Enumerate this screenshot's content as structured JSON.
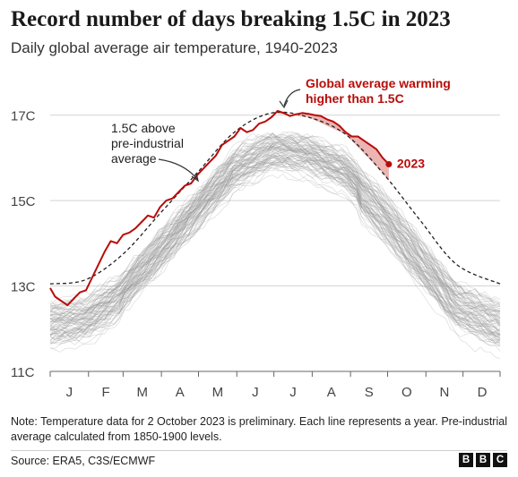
{
  "header": {
    "title": "Record number of days breaking 1.5C in 2023",
    "subtitle": "Daily global average air temperature, 1940-2023"
  },
  "footer": {
    "note": "Note: Temperature data for 2 October 2023 is preliminary. Each line represents a year. Pre-industrial average calculated from 1850-1900 levels.",
    "source": "Source: ERA5, C3S/ECMWF",
    "logo_letters": [
      "B",
      "B",
      "C"
    ]
  },
  "colors": {
    "highlight": "#b80c09",
    "historic_lines": "#9a9a9a",
    "highlight_fill": "#e9a7a4",
    "reference_line": "#222222"
  },
  "chart_data": {
    "type": "line",
    "xlabel": "",
    "ylabel": "",
    "x_ticks": [
      "J",
      "F",
      "M",
      "A",
      "M",
      "J",
      "J",
      "A",
      "S",
      "O",
      "N",
      "D"
    ],
    "y_ticks": [
      "11C",
      "13C",
      "15C",
      "17C"
    ],
    "ylim": [
      11,
      17.6
    ],
    "xlim": [
      1,
      365
    ],
    "grid": "horizontal",
    "reference": {
      "label": "1.5C above pre-industrial average",
      "x": [
        1,
        30,
        60,
        90,
        120,
        150,
        180,
        210,
        240,
        270,
        300,
        330,
        365
      ],
      "y": [
        13.05,
        13.15,
        13.75,
        14.7,
        15.65,
        16.6,
        17.05,
        16.95,
        16.55,
        15.65,
        14.55,
        13.5,
        13.05
      ]
    },
    "series_2023": {
      "name": "2023",
      "x": [
        1,
        5,
        10,
        15,
        20,
        25,
        30,
        35,
        40,
        45,
        50,
        55,
        60,
        65,
        70,
        75,
        80,
        85,
        90,
        95,
        100,
        105,
        110,
        115,
        120,
        125,
        130,
        135,
        140,
        145,
        150,
        155,
        160,
        165,
        170,
        175,
        180,
        185,
        190,
        195,
        200,
        205,
        210,
        215,
        220,
        225,
        230,
        235,
        240,
        245,
        250,
        255,
        260,
        265,
        270,
        275
      ],
      "y": [
        12.95,
        12.75,
        12.65,
        12.55,
        12.7,
        12.85,
        12.9,
        13.2,
        13.5,
        13.8,
        14.05,
        14.0,
        14.2,
        14.25,
        14.35,
        14.5,
        14.65,
        14.6,
        14.85,
        15.0,
        15.05,
        15.2,
        15.35,
        15.4,
        15.6,
        15.75,
        15.9,
        16.05,
        16.3,
        16.4,
        16.5,
        16.7,
        16.6,
        16.65,
        16.8,
        16.85,
        16.95,
        17.1,
        17.05,
        16.98,
        17.02,
        17.05,
        17.03,
        17.0,
        16.98,
        16.9,
        16.85,
        16.75,
        16.6,
        16.5,
        16.5,
        16.4,
        16.3,
        16.2,
        16.0,
        15.85
      ]
    },
    "historic_years": {
      "count": 83,
      "range": "1940-2022"
    },
    "annotations": {
      "reference_label": "1.5C above\npre-industrial\naverage",
      "warming_label": "Global average warming\nhigher than 1.5C",
      "end_label": "2023"
    }
  }
}
